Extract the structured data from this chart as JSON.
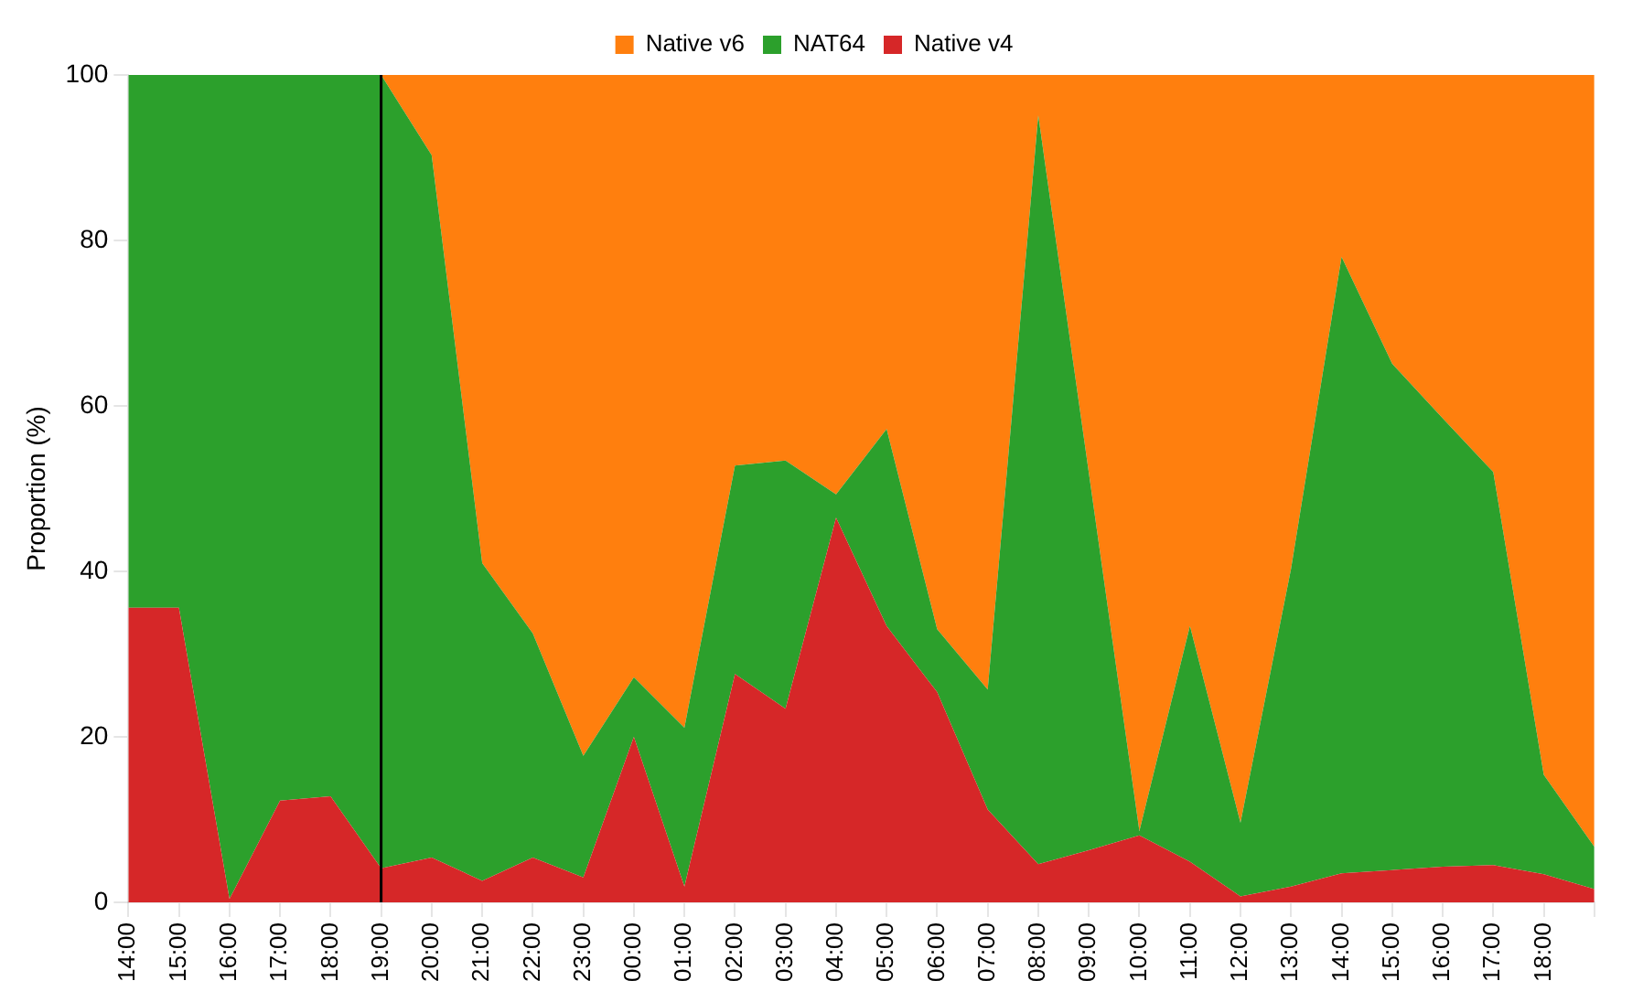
{
  "chart_data": {
    "type": "area",
    "stacked": true,
    "ylabel": "Proportion (%)",
    "legend": "top",
    "grid": false,
    "categories": [
      "14:00",
      "15:00",
      "16:00",
      "17:00",
      "18:00",
      "19:00",
      "20:00",
      "21:00",
      "22:00",
      "23:00",
      "00:00",
      "01:00",
      "02:00",
      "03:00",
      "04:00",
      "05:00",
      "06:00",
      "07:00",
      "08:00",
      "09:00",
      "10:00",
      "11:00",
      "12:00",
      "13:00",
      "14:00",
      "15:00",
      "16:00",
      "17:00",
      "18:00",
      null
    ],
    "ylim": [
      0,
      100
    ],
    "yticks": [
      0,
      20,
      40,
      60,
      80,
      100
    ],
    "ref_lines": [
      {
        "axis": "x",
        "value": "19:00",
        "color": "#000000"
      }
    ],
    "series": [
      {
        "name": "Native v4",
        "color": "#d62728",
        "values": [
          35.6,
          35.6,
          0.4,
          12.3,
          12.8,
          4.1,
          5.4,
          2.6,
          5.4,
          3,
          20,
          1.9,
          27.6,
          23.4,
          46.5,
          33.4,
          25.4,
          11.2,
          4.6,
          6.3,
          8.1,
          4.9,
          0.7,
          1.9,
          3.5,
          3.9,
          4.3,
          4.5,
          3.4,
          1.6
        ]
      },
      {
        "name": "NAT64",
        "color": "#2ca02c",
        "values": [
          64.4,
          64.4,
          99.6,
          87.7,
          87.2,
          95.9,
          84.9,
          38.4,
          27.1,
          14.7,
          7.2,
          19.2,
          25.2,
          30,
          2.8,
          23.8,
          7.6,
          14.5,
          90.5,
          45.6,
          0.5,
          28.5,
          8.9,
          38.4,
          74.5,
          61.2,
          54.2,
          47.5,
          12,
          5.1
        ]
      },
      {
        "name": "Native v6",
        "color": "#ff7f0e",
        "values": [
          null,
          null,
          null,
          null,
          null,
          0,
          9.7,
          59,
          67.5,
          82.3,
          72.8,
          78.9,
          47.2,
          46.6,
          50.7,
          42.8,
          67,
          74.3,
          4.9,
          48.1,
          91.4,
          66.6,
          90.4,
          59.7,
          22,
          34.9,
          41.5,
          48,
          84.6,
          93.3
        ]
      }
    ]
  }
}
